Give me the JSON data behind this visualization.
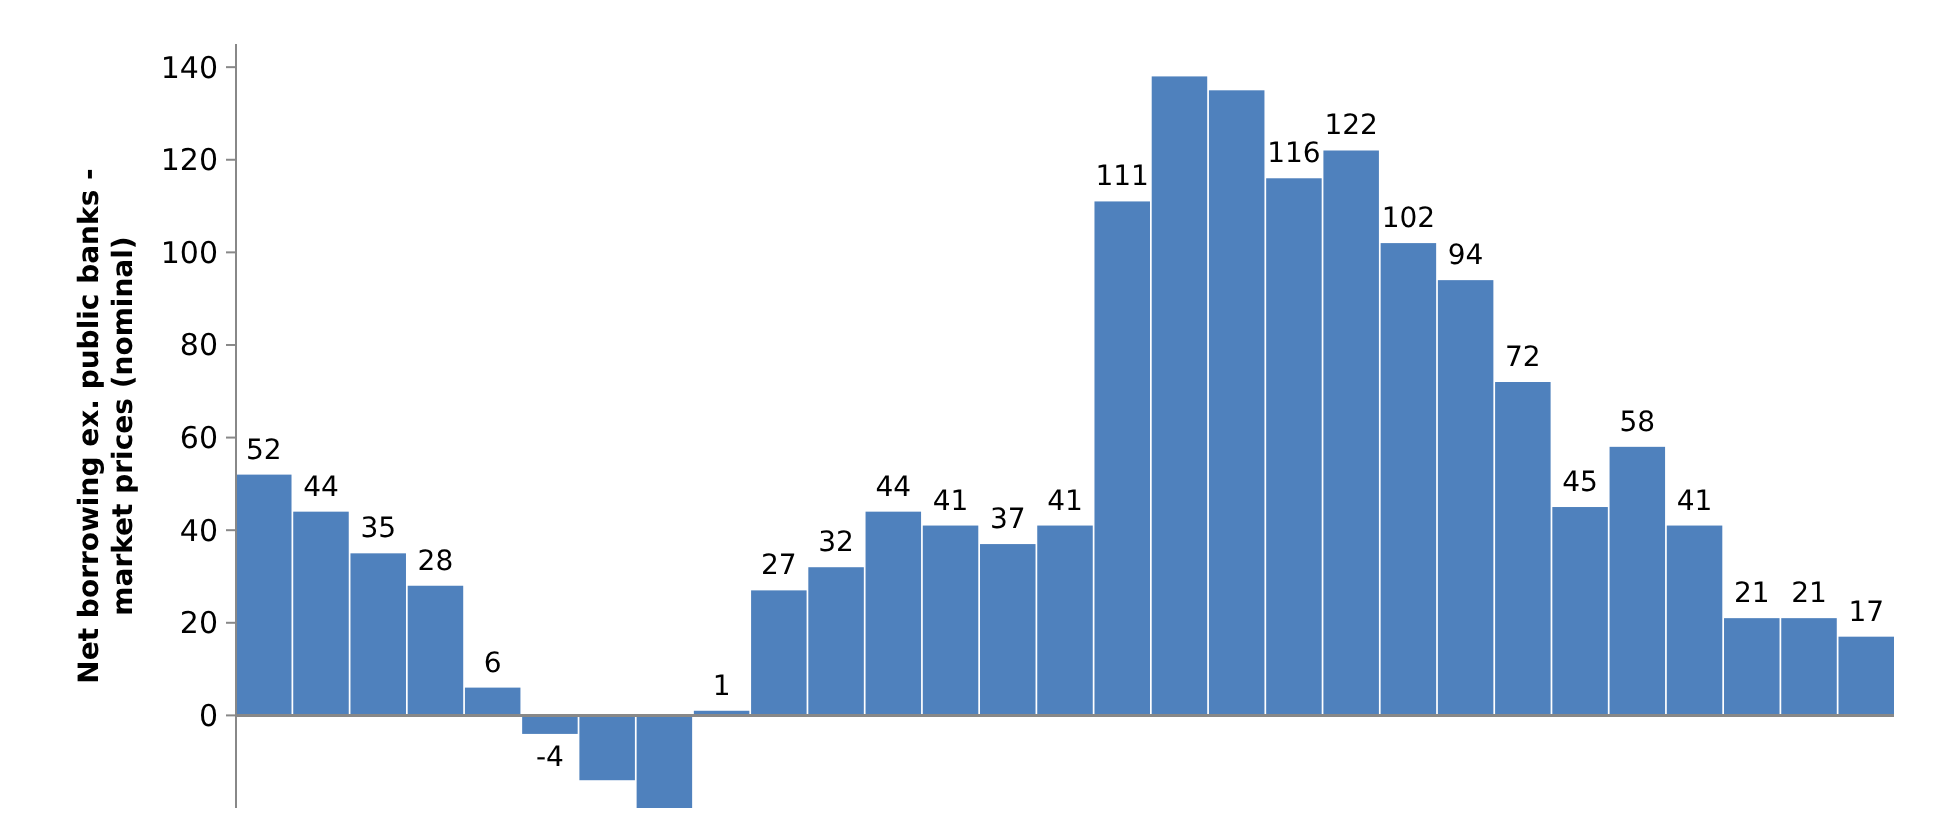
{
  "chart_data": {
    "type": "bar",
    "ylabel": "Net borrowing ex. public banks - market prices (nominal)",
    "categories": [
      null,
      null,
      null,
      null,
      null,
      null,
      null,
      null,
      null,
      null,
      null,
      null,
      null,
      null,
      null,
      null,
      null,
      null,
      null,
      null,
      null,
      null,
      null,
      null,
      null,
      null,
      null,
      null,
      null
    ],
    "values": [
      52,
      44,
      35,
      28,
      6,
      -4,
      -14,
      -20,
      1,
      27,
      32,
      44,
      41,
      37,
      41,
      111,
      138,
      135,
      116,
      122,
      102,
      94,
      72,
      45,
      58,
      41,
      21,
      21,
      17
    ],
    "value_labels": [
      "52",
      "44",
      "35",
      "28",
      "6",
      "-4",
      null,
      null,
      "1",
      "27",
      "32",
      "44",
      "41",
      "37",
      "41",
      "111",
      null,
      null,
      "116",
      "122",
      "102",
      "94",
      "72",
      "45",
      "58",
      "41",
      "21",
      "21",
      "17"
    ],
    "color": "#4f81bd",
    "ylim": [
      -20,
      145
    ],
    "yticks": [
      0,
      20,
      40,
      60,
      80,
      100,
      120,
      140
    ]
  }
}
